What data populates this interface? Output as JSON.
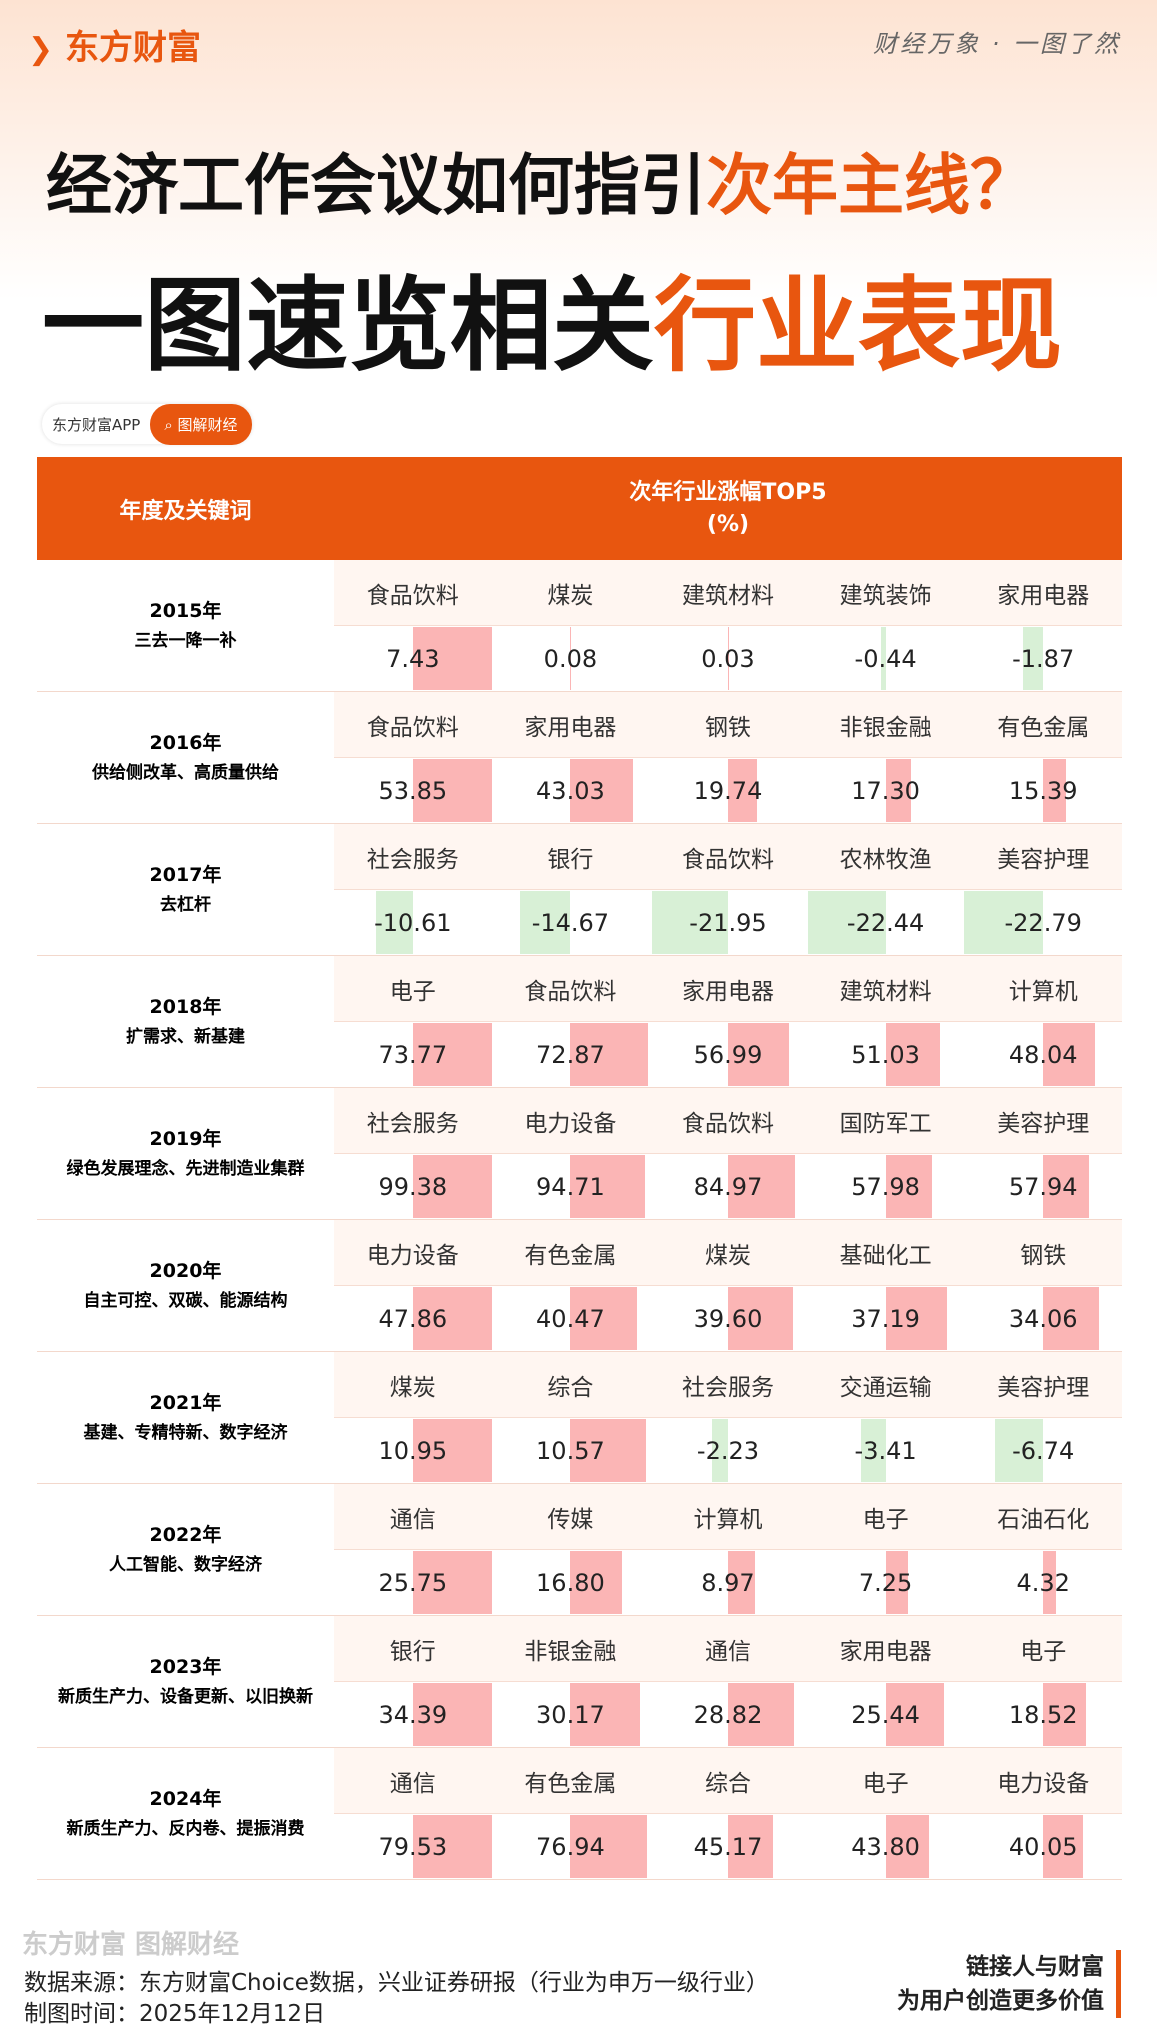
{
  "header": {
    "brand": "东方财富",
    "slogan": "财经万象 · 一图了然",
    "title1_a": "经济工作会议如何指引",
    "title1_b": "次年主线？",
    "title2_a": "一图速览相关",
    "title2_b": "行业表现"
  },
  "tags": [
    "东方财富APP",
    "图解财经"
  ],
  "table": {
    "col1": "年度及关键词",
    "col2_line1": "次年行业涨幅TOP5",
    "col2_line2": "(%)",
    "positive_color": "#fbb5b5",
    "negative_color": "#d8f0d6",
    "rows": [
      {
        "year": "2015年",
        "keywords": "三去一降一补",
        "industries": [
          "食品饮料",
          "煤炭",
          "建筑材料",
          "建筑装饰",
          "家用电器"
        ],
        "values": [
          7.43,
          0.08,
          0.03,
          -0.44,
          -1.87
        ],
        "value_labels": [
          "7.43",
          "0.08",
          "0.03",
          "-0.44",
          "-1.87"
        ]
      },
      {
        "year": "2016年",
        "keywords": "供给侧改革、高质量供给",
        "industries": [
          "食品饮料",
          "家用电器",
          "钢铁",
          "非银金融",
          "有色金属"
        ],
        "values": [
          53.85,
          43.03,
          19.74,
          17.3,
          15.39
        ],
        "value_labels": [
          "53.85",
          "43.03",
          "19.74",
          "17.30",
          "15.39"
        ]
      },
      {
        "year": "2017年",
        "keywords": "去杠杆",
        "industries": [
          "社会服务",
          "银行",
          "食品饮料",
          "农林牧渔",
          "美容护理"
        ],
        "values": [
          -10.61,
          -14.67,
          -21.95,
          -22.44,
          -22.79
        ],
        "value_labels": [
          "-10.61",
          "-14.67",
          "-21.95",
          "-22.44",
          "-22.79"
        ]
      },
      {
        "year": "2018年",
        "keywords": "扩需求、新基建",
        "industries": [
          "电子",
          "食品饮料",
          "家用电器",
          "建筑材料",
          "计算机"
        ],
        "values": [
          73.77,
          72.87,
          56.99,
          51.03,
          48.04
        ],
        "value_labels": [
          "73.77",
          "72.87",
          "56.99",
          "51.03",
          "48.04"
        ]
      },
      {
        "year": "2019年",
        "keywords": "绿色发展理念、先进制造业集群",
        "industries": [
          "社会服务",
          "电力设备",
          "食品饮料",
          "国防军工",
          "美容护理"
        ],
        "values": [
          99.38,
          94.71,
          84.97,
          57.98,
          57.94
        ],
        "value_labels": [
          "99.38",
          "94.71",
          "84.97",
          "57.98",
          "57.94"
        ]
      },
      {
        "year": "2020年",
        "keywords": "自主可控、双碳、能源结构",
        "industries": [
          "电力设备",
          "有色金属",
          "煤炭",
          "基础化工",
          "钢铁"
        ],
        "values": [
          47.86,
          40.47,
          39.6,
          37.19,
          34.06
        ],
        "value_labels": [
          "47.86",
          "40.47",
          "39.60",
          "37.19",
          "34.06"
        ]
      },
      {
        "year": "2021年",
        "keywords": "基建、专精特新、数字经济",
        "industries": [
          "煤炭",
          "综合",
          "社会服务",
          "交通运输",
          "美容护理"
        ],
        "values": [
          10.95,
          10.57,
          -2.23,
          -3.41,
          -6.74
        ],
        "value_labels": [
          "10.95",
          "10.57",
          "-2.23",
          "-3.41",
          "-6.74"
        ]
      },
      {
        "year": "2022年",
        "keywords": "人工智能、数字经济",
        "industries": [
          "通信",
          "传媒",
          "计算机",
          "电子",
          "石油石化"
        ],
        "values": [
          25.75,
          16.8,
          8.97,
          7.25,
          4.32
        ],
        "value_labels": [
          "25.75",
          "16.80",
          "8.97",
          "7.25",
          "4.32"
        ]
      },
      {
        "year": "2023年",
        "keywords": "新质生产力、设备更新、以旧换新",
        "industries": [
          "银行",
          "非银金融",
          "通信",
          "家用电器",
          "电子"
        ],
        "values": [
          34.39,
          30.17,
          28.82,
          25.44,
          18.52
        ],
        "value_labels": [
          "34.39",
          "30.17",
          "28.82",
          "25.44",
          "18.52"
        ]
      },
      {
        "year": "2024年",
        "keywords": "新质生产力、反内卷、提振消费",
        "industries": [
          "通信",
          "有色金属",
          "综合",
          "电子",
          "电力设备"
        ],
        "values": [
          79.53,
          76.94,
          45.17,
          43.8,
          40.05
        ],
        "value_labels": [
          "79.53",
          "76.94",
          "45.17",
          "43.80",
          "40.05"
        ]
      }
    ]
  },
  "footer": {
    "watermark": "东方财富 图解财经",
    "source": "数据来源：东方财富Choice数据，兴业证券研报（行业为申万一级行业）",
    "date": "制图时间：2025年12月12日",
    "slogan1": "链接人与财富",
    "slogan2": "为用户创造更多价值"
  }
}
